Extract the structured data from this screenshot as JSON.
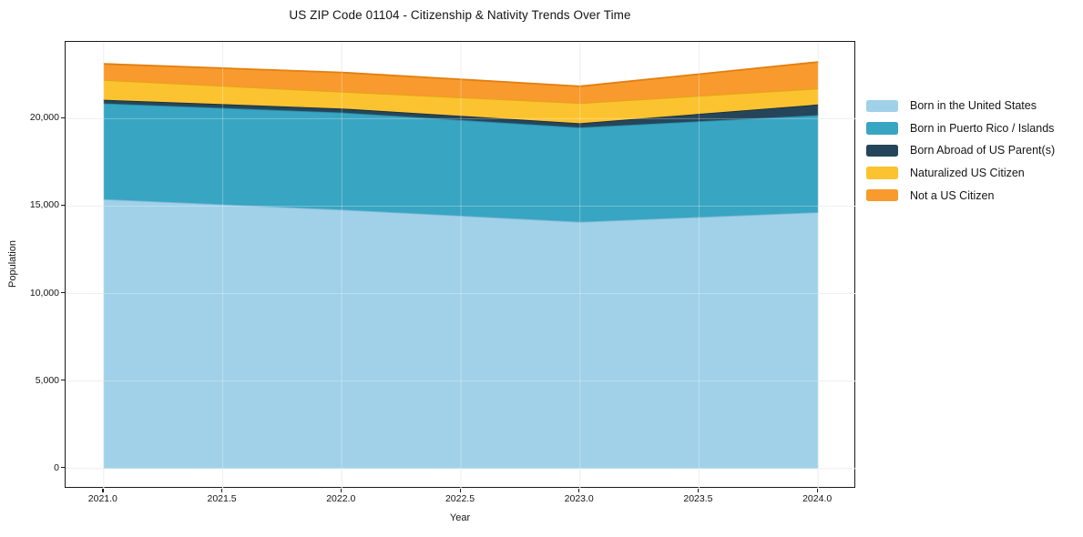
{
  "figure": {
    "title": "US ZIP Code 01104 - Citizenship & Nativity Trends Over Time",
    "background_color": "#ffffff",
    "axis_color": "#1a1a1a",
    "grid_color": "#e9e9e9"
  },
  "chart_data": {
    "type": "area",
    "stacked": true,
    "title": "US ZIP Code 01104 - Citizenship & Nativity Trends Over Time",
    "xlabel": "Year",
    "ylabel": "Population",
    "x": [
      2021.0,
      2022.0,
      2023.0,
      2024.0
    ],
    "series": [
      {
        "name": "Born in the United States",
        "color": "#a0d1e8",
        "edge_color": "#7ab6d5",
        "values": [
          15400,
          14800,
          14100,
          14650
        ]
      },
      {
        "name": "Born in Puerto Rico / Islands",
        "color": "#38a5c2",
        "edge_color": "#2a8aa6",
        "values": [
          5470,
          5550,
          5400,
          5550
        ]
      },
      {
        "name": "Born Abroad of US Parent(s)",
        "color": "#25465a",
        "edge_color": "#182f3d",
        "values": [
          210,
          230,
          240,
          610
        ]
      },
      {
        "name": "Naturalized US Citizen",
        "color": "#fcc331",
        "edge_color": "#e2a614",
        "values": [
          1130,
          960,
          1150,
          910
        ]
      },
      {
        "name": "Not a US Citizen",
        "color": "#f89a2d",
        "edge_color": "#e27f10",
        "values": [
          920,
          1100,
          960,
          1520
        ]
      }
    ],
    "totals": [
      23130,
      22640,
      21850,
      23240
    ],
    "x_tick_values": [
      2021.0,
      2021.5,
      2022.0,
      2022.5,
      2023.0,
      2023.5,
      2024.0
    ],
    "x_tick_labels": [
      "2021.0",
      "2021.5",
      "2022.0",
      "2022.5",
      "2023.0",
      "2023.5",
      "2024.0"
    ],
    "y_tick_values": [
      0,
      5000,
      10000,
      15000,
      20000
    ],
    "y_tick_labels": [
      "0",
      "5,000",
      "10,000",
      "15,000",
      "20,000"
    ],
    "xlim": [
      2020.84,
      2024.16
    ],
    "ylim": [
      -1160,
      24390
    ],
    "grid": true,
    "legend_position": "right-outside"
  }
}
